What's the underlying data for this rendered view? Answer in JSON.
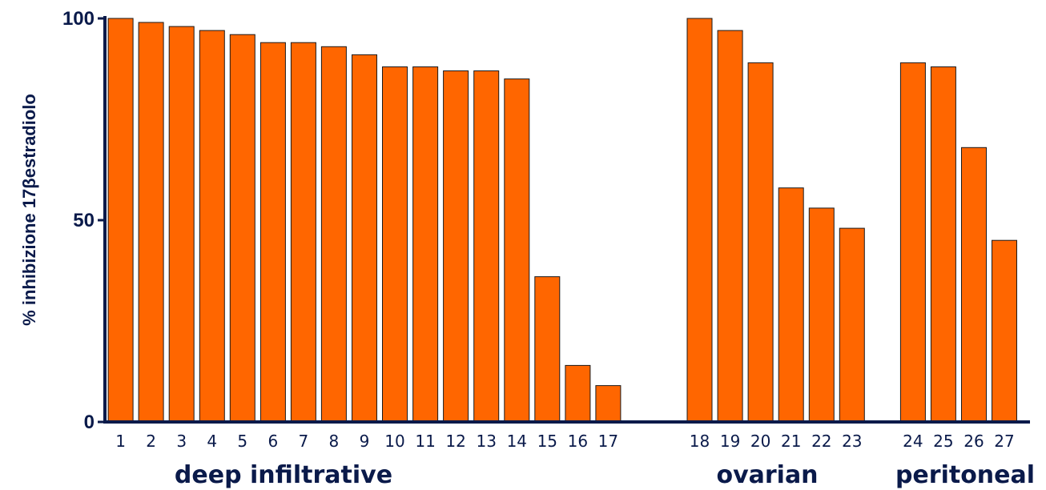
{
  "chart_data": {
    "type": "bar",
    "title": "",
    "xlabel": "",
    "ylabel": "% inhibizione 17βestradiolo",
    "ylim": [
      0,
      100
    ],
    "yticks": [
      0,
      50,
      100
    ],
    "grid": false,
    "bar_color": "#ff6600",
    "axis_color": "#0a1a4a",
    "categories": [
      "1",
      "2",
      "3",
      "4",
      "5",
      "6",
      "7",
      "8",
      "9",
      "10",
      "11",
      "12",
      "13",
      "14",
      "15",
      "16",
      "17",
      "18",
      "19",
      "20",
      "21",
      "22",
      "23",
      "24",
      "25",
      "26",
      "27"
    ],
    "values": [
      100,
      99,
      98,
      97,
      96,
      94,
      94,
      93,
      91,
      88,
      88,
      87,
      87,
      85,
      36,
      14,
      9,
      100,
      97,
      89,
      58,
      53,
      48,
      89,
      88,
      68,
      45
    ],
    "groups": [
      {
        "label": "deep infiltrative",
        "categories": [
          "1",
          "2",
          "3",
          "4",
          "5",
          "6",
          "7",
          "8",
          "9",
          "10",
          "11",
          "12",
          "13",
          "14",
          "15",
          "16",
          "17"
        ]
      },
      {
        "label": "ovarian",
        "categories": [
          "18",
          "19",
          "20",
          "21",
          "22",
          "23"
        ]
      },
      {
        "label": "peritoneal",
        "categories": [
          "24",
          "25",
          "26",
          "27"
        ]
      }
    ]
  }
}
